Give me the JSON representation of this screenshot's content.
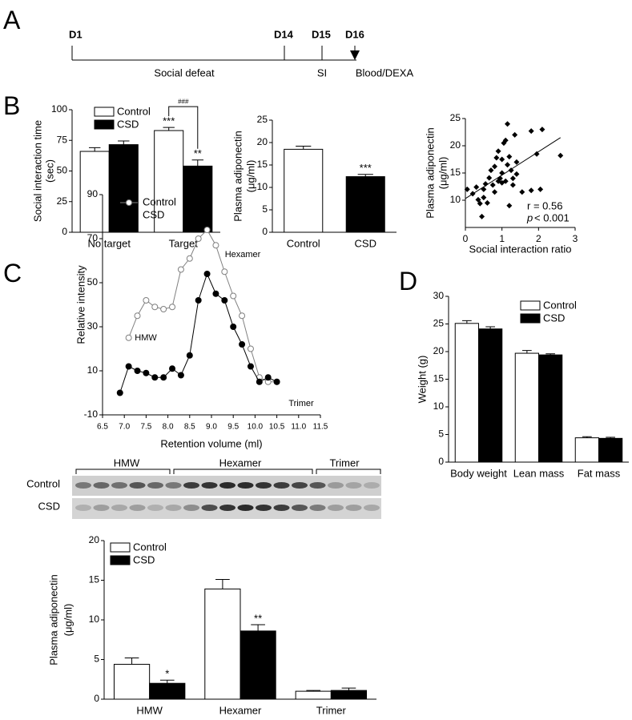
{
  "panel_labels": [
    "A",
    "B",
    "C",
    "D"
  ],
  "timeline": {
    "days": [
      "D1",
      "D14",
      "D15",
      "D16"
    ],
    "phases": [
      "Social defeat",
      "SI",
      "Blood/DEXA"
    ]
  },
  "blot": {
    "groups": [
      "HMW",
      "Hexamer",
      "Trimer"
    ],
    "rows": [
      "Control",
      "CSD"
    ]
  },
  "chart_data": [
    {
      "type": "bar",
      "ylabel": [
        "Social interaction time",
        "(sec)"
      ],
      "categories": [
        "No target",
        "Target"
      ],
      "series": [
        {
          "name": "Control",
          "color": "#ffffff",
          "values": [
            66,
            83
          ],
          "errors": [
            3,
            2.5
          ],
          "stars": [
            null,
            "***"
          ]
        },
        {
          "name": "CSD",
          "color": "#000000",
          "values": [
            71.5,
            54
          ],
          "errors": [
            3,
            5
          ],
          "stars": [
            null,
            "**"
          ]
        }
      ],
      "bracket": "###",
      "ylim": [
        0,
        100
      ],
      "yticks": [
        0,
        25,
        50,
        75,
        100
      ],
      "legend": "upper left"
    },
    {
      "type": "bar",
      "ylabel": [
        "Plasma adiponectin",
        "(μg/ml)"
      ],
      "categories": [
        "Control",
        "CSD"
      ],
      "values": [
        18.5,
        12.4
      ],
      "errors": [
        0.7,
        0.5
      ],
      "colors": [
        "#ffffff",
        "#000000"
      ],
      "stars": [
        null,
        "***"
      ],
      "ylim": [
        0,
        25
      ],
      "yticks": [
        0,
        5,
        10,
        15,
        20,
        25
      ]
    },
    {
      "type": "scatter",
      "ylabel": [
        "Plasma adiponectin",
        "(μg/ml)"
      ],
      "xlabel": "Social interaction ratio",
      "color": "#000000",
      "x": [
        0.05,
        0.2,
        0.3,
        0.35,
        0.4,
        0.45,
        0.5,
        0.5,
        0.55,
        0.6,
        0.65,
        0.7,
        0.75,
        0.8,
        0.8,
        0.85,
        0.9,
        0.9,
        0.95,
        1.0,
        1.0,
        1.0,
        1.05,
        1.1,
        1.1,
        1.15,
        1.15,
        1.2,
        1.2,
        1.25,
        1.3,
        1.3,
        1.35,
        1.4,
        1.4,
        1.55,
        1.8,
        1.8,
        1.95,
        2.05,
        2.1,
        2.6
      ],
      "y": [
        12.0,
        11.2,
        12.4,
        10.1,
        9.4,
        7.0,
        10.5,
        12.0,
        13.0,
        9.5,
        14.1,
        15.5,
        12.8,
        11.5,
        16.2,
        17.8,
        13.5,
        19.0,
        14.0,
        13.2,
        15.0,
        17.5,
        20.5,
        21.0,
        13.5,
        24.0,
        16.5,
        18.0,
        9.0,
        15.5,
        14.0,
        12.8,
        22.0,
        17.0,
        14.8,
        11.5,
        11.8,
        22.7,
        18.5,
        12.0,
        23.0,
        18.2
      ],
      "fit": {
        "x": [
          0,
          2.6
        ],
        "y": [
          10.3,
          21.5
        ]
      },
      "annotations": [
        "r = 0.56",
        "p",
        "< 0.001"
      ],
      "xlim": [
        0,
        3
      ],
      "xticks": [
        0,
        1,
        2,
        3
      ],
      "ylim": [
        5,
        25
      ],
      "yticks": [
        10,
        15,
        20,
        25
      ]
    },
    {
      "type": "line",
      "ylabel": "Relative intensity",
      "xlabel": "Retention volume (ml)",
      "x": [
        6.9,
        7.1,
        7.3,
        7.5,
        7.7,
        7.9,
        8.1,
        8.3,
        8.5,
        8.7,
        8.9,
        9.1,
        9.3,
        9.5,
        9.7,
        9.9,
        10.1,
        10.3,
        10.5
      ],
      "series": [
        {
          "name": "Control",
          "color": "#808080",
          "marker": "open",
          "values": [
            null,
            25,
            35,
            42,
            39,
            38,
            39,
            56,
            61,
            70,
            74,
            67,
            55,
            44,
            35,
            20,
            7,
            5,
            5
          ]
        },
        {
          "name": "CSD",
          "color": "#000000",
          "marker": "filled",
          "values": [
            0,
            12,
            10,
            9,
            7,
            7,
            11,
            8,
            17,
            42,
            54,
            45,
            42,
            30,
            22,
            12,
            5,
            7,
            5
          ]
        }
      ],
      "annotations": [
        "HMW",
        "Hexamer",
        "Trimer"
      ],
      "xlim": [
        6.5,
        11.5
      ],
      "xticks": [
        6.5,
        {
          "value": 7,
          "label": "7.0"
        },
        7.5,
        {
          "value": 8,
          "label": "8.0"
        },
        8.5,
        {
          "value": 9,
          "label": "9.0"
        },
        9.5,
        {
          "value": 10,
          "label": "10.0"
        },
        10.5,
        {
          "value": 11,
          "label": "11.0"
        },
        11.5
      ],
      "ylim": [
        -10,
        90
      ],
      "yticks": [
        -10,
        10,
        30,
        50,
        70,
        90
      ],
      "legend": "upper left"
    },
    {
      "type": "bar",
      "ylabel": [
        "Plasma adiponectin",
        "(μg/ml)"
      ],
      "categories": [
        "HMW",
        "Hexamer",
        "Trimer"
      ],
      "series": [
        {
          "name": "Control",
          "color": "#ffffff",
          "values": [
            4.4,
            13.9,
            1.0
          ],
          "errors": [
            0.8,
            1.2,
            0.1
          ],
          "stars": [
            null,
            null,
            null
          ]
        },
        {
          "name": "CSD",
          "color": "#000000",
          "values": [
            2.0,
            8.6,
            1.1
          ],
          "errors": [
            0.4,
            0.8,
            0.3
          ],
          "stars": [
            "*",
            "**",
            null
          ]
        }
      ],
      "ylim": [
        0,
        20
      ],
      "yticks": [
        0,
        5,
        10,
        15,
        20
      ],
      "legend": "upper left"
    },
    {
      "type": "bar",
      "ylabel": [
        "Weight (g)"
      ],
      "categories": [
        "Body weight",
        "Lean mass",
        "Fat mass"
      ],
      "series": [
        {
          "name": "Control",
          "color": "#ffffff",
          "values": [
            25.1,
            19.7,
            4.4
          ],
          "errors": [
            0.5,
            0.5,
            0.2
          ],
          "stars": [
            null,
            null,
            null
          ]
        },
        {
          "name": "CSD",
          "color": "#000000",
          "values": [
            24.1,
            19.4,
            4.3
          ],
          "errors": [
            0.4,
            0.2,
            0.2
          ],
          "stars": [
            null,
            null,
            null
          ]
        }
      ],
      "ylim": [
        0,
        30
      ],
      "yticks": [
        0,
        5,
        10,
        15,
        20,
        25,
        30
      ],
      "legend": "upper center"
    }
  ]
}
